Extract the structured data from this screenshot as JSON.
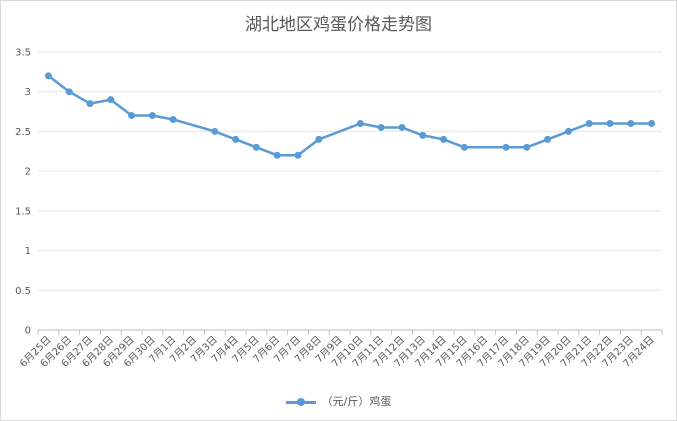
{
  "chart_data": {
    "type": "line",
    "title": "湖北地区鸡蛋价格走势图",
    "xlabel": "",
    "ylabel": "",
    "ylim": [
      0,
      3.5
    ],
    "yticks": [
      "0",
      "0.5",
      "1",
      "1.5",
      "2",
      "2.5",
      "3",
      "3.5"
    ],
    "grid": true,
    "legend_position": "bottom",
    "line_color": "#5b9bd5",
    "categories": [
      "6月25日",
      "6月26日",
      "6月27日",
      "6月28日",
      "6月29日",
      "6月30日",
      "7月1日",
      "7月2日",
      "7月3日",
      "7月4日",
      "7月5日",
      "7月6日",
      "7月7日",
      "7月8日",
      "7月9日",
      "7月10日",
      "7月11日",
      "7月12日",
      "7月13日",
      "7月14日",
      "7月15日",
      "7月16日",
      "7月17日",
      "7月18日",
      "7月19日",
      "7月20日",
      "7月21日",
      "7月22日",
      "7月23日",
      "7月24日"
    ],
    "series": [
      {
        "name": "（元/斤）鸡蛋",
        "values": [
          3.2,
          3.0,
          2.85,
          2.9,
          2.7,
          2.7,
          2.65,
          null,
          2.5,
          2.4,
          2.3,
          2.2,
          2.2,
          2.4,
          null,
          2.6,
          2.55,
          2.55,
          2.45,
          2.4,
          2.3,
          null,
          2.3,
          2.3,
          2.4,
          2.5,
          2.6,
          2.6,
          2.6,
          2.6
        ]
      }
    ]
  }
}
